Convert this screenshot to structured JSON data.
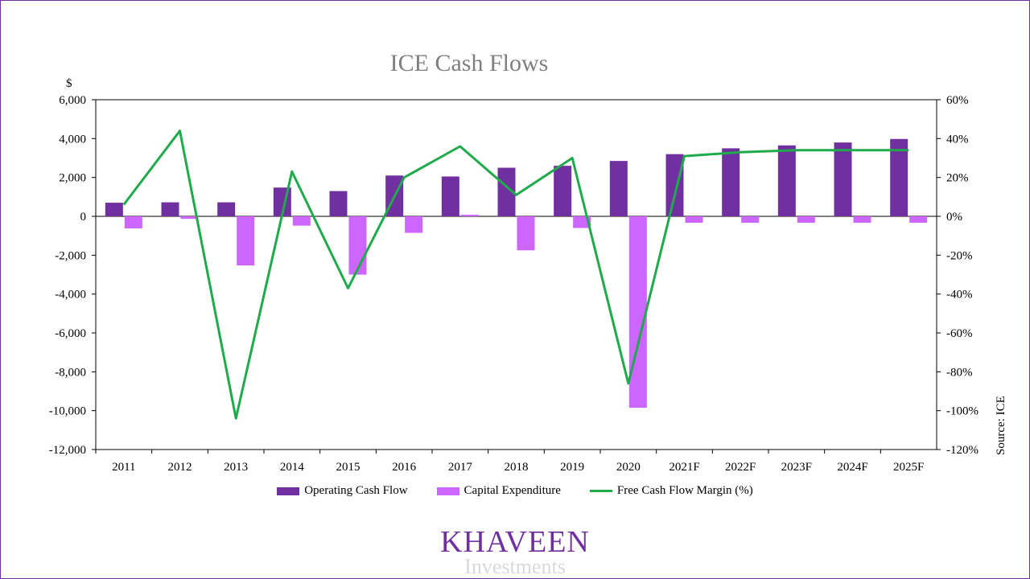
{
  "chart_data": {
    "type": "bar",
    "title": "ICE Cash Flows",
    "y_unit_label": "$",
    "source": "Source: ICE",
    "categories": [
      "2011",
      "2012",
      "2013",
      "2014",
      "2015",
      "2016",
      "2017",
      "2018",
      "2019",
      "2020",
      "2021F",
      "2022F",
      "2023F",
      "2024F",
      "2025F"
    ],
    "series": [
      {
        "name": "Operating Cash Flow",
        "type": "bar",
        "axis": "left",
        "color": "#7030a0",
        "values": [
          700,
          720,
          720,
          1480,
          1300,
          2100,
          2050,
          2500,
          2600,
          2850,
          3200,
          3500,
          3650,
          3800,
          3980
        ]
      },
      {
        "name": "Capital Expenditure",
        "type": "bar",
        "axis": "left",
        "color": "#cc66ff",
        "values": [
          -620,
          -130,
          -2530,
          -480,
          -3000,
          -850,
          80,
          -1750,
          -600,
          -9850,
          -330,
          -330,
          -330,
          -330,
          -330
        ]
      },
      {
        "name": "Free Cash Flow Margin (%)",
        "type": "line",
        "axis": "right",
        "color": "#1faa4b",
        "values": [
          6,
          44,
          -104,
          23,
          -37,
          20,
          36,
          11,
          30,
          -86,
          31,
          33,
          34,
          34,
          34
        ]
      }
    ],
    "y_left": {
      "min": -12000,
      "max": 6000,
      "ticks": [
        6000,
        4000,
        2000,
        0,
        -2000,
        -4000,
        -6000,
        -8000,
        -10000,
        -12000
      ],
      "tick_labels": [
        "6,000",
        "4,000",
        "2,000",
        "0",
        "-2,000",
        "-4,000",
        "-6,000",
        "-8,000",
        "-10,000",
        "-12,000"
      ]
    },
    "y_right": {
      "min": -120,
      "max": 60,
      "ticks": [
        60,
        40,
        20,
        0,
        -20,
        -40,
        -60,
        -80,
        -100,
        -120
      ],
      "tick_labels": [
        "60%",
        "40%",
        "20%",
        "0%",
        "-20%",
        "-40%",
        "-60%",
        "-80%",
        "-100%",
        "-120%"
      ]
    },
    "legend_position": "bottom",
    "grid": false
  },
  "logo": {
    "main": "KHAVEEN",
    "sub": "Investments"
  }
}
